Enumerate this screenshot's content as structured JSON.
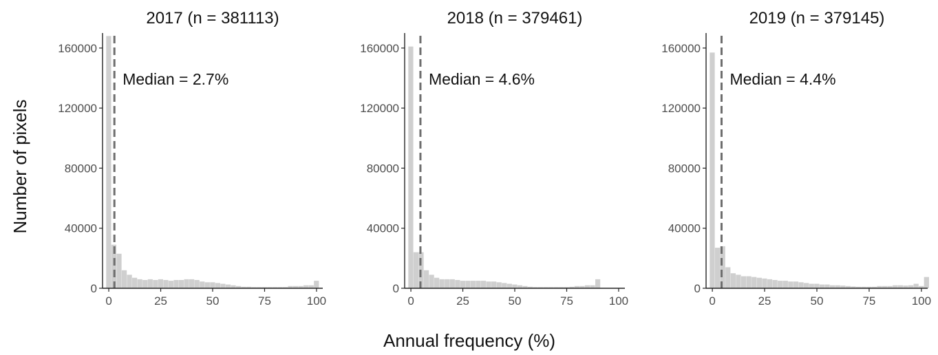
{
  "figure": {
    "ylabel": "Number of pixels",
    "xlabel": "Annual frequency (%)"
  },
  "chart_data": [
    {
      "type": "bar",
      "title": "2017 (n = 381113)",
      "annotation": "Median = 2.7%",
      "median": 2.7,
      "xlim": [
        -3,
        103
      ],
      "ylim": [
        0,
        170000
      ],
      "xticks": [
        0,
        25,
        50,
        75,
        100
      ],
      "yticks": [
        0,
        40000,
        80000,
        120000,
        160000
      ],
      "bin_width": 2.5,
      "bin_start": -1.25,
      "values": [
        168000,
        29000,
        23000,
        12000,
        9000,
        7000,
        6000,
        5500,
        6000,
        5500,
        6000,
        5500,
        5000,
        5500,
        5500,
        6000,
        6000,
        5500,
        4500,
        4000,
        4000,
        3500,
        3000,
        2500,
        2000,
        1500,
        1000,
        1000,
        800,
        800,
        800,
        800,
        800,
        800,
        800,
        1500,
        1500,
        1500,
        2000,
        2000,
        5000
      ]
    },
    {
      "type": "bar",
      "title": "2018 (n = 379461)",
      "annotation": "Median = 4.6%",
      "median": 4.6,
      "xlim": [
        -3,
        103
      ],
      "ylim": [
        0,
        170000
      ],
      "xticks": [
        0,
        25,
        50,
        75,
        100
      ],
      "yticks": [
        0,
        40000,
        80000,
        120000,
        160000
      ],
      "bin_width": 2.5,
      "bin_start": -1.25,
      "values": [
        161000,
        24000,
        24000,
        12000,
        9000,
        7000,
        6000,
        6000,
        6000,
        5500,
        5000,
        5000,
        5000,
        5000,
        5000,
        4500,
        4500,
        4000,
        3500,
        3000,
        2500,
        2000,
        1500,
        1000,
        800,
        800,
        800,
        800,
        800,
        800,
        800,
        1000,
        1500,
        1500,
        2000,
        2000,
        6000
      ]
    },
    {
      "type": "bar",
      "title": "2019 (n = 379145)",
      "annotation": "Median = 4.4%",
      "median": 4.4,
      "xlim": [
        -3,
        103
      ],
      "ylim": [
        0,
        170000
      ],
      "xticks": [
        0,
        25,
        50,
        75,
        100
      ],
      "yticks": [
        0,
        40000,
        80000,
        120000,
        160000
      ],
      "bin_width": 2.5,
      "bin_start": -1.25,
      "values": [
        157000,
        27000,
        28000,
        14000,
        10000,
        9000,
        8000,
        8000,
        7500,
        7000,
        6500,
        6000,
        5500,
        5000,
        5000,
        4500,
        4500,
        4000,
        3500,
        3000,
        3000,
        2500,
        2500,
        2000,
        2000,
        1800,
        1500,
        1200,
        1000,
        1000,
        1000,
        1000,
        1500,
        1500,
        1500,
        2000,
        2000,
        1800,
        2000,
        3000,
        1500,
        7500
      ]
    }
  ]
}
